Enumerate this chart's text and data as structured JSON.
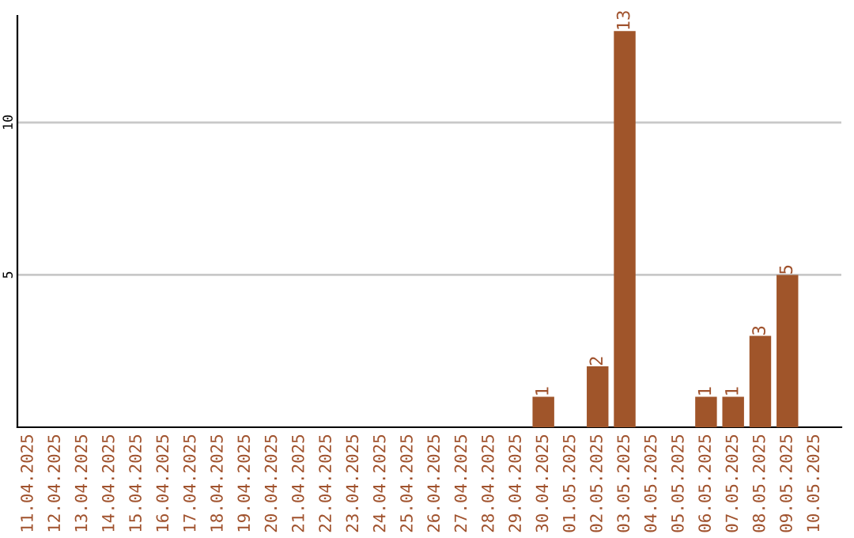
{
  "chart_data": {
    "type": "bar",
    "categories": [
      "11.04.2025",
      "12.04.2025",
      "13.04.2025",
      "14.04.2025",
      "15.04.2025",
      "16.04.2025",
      "17.04.2025",
      "18.04.2025",
      "19.04.2025",
      "20.04.2025",
      "21.04.2025",
      "22.04.2025",
      "23.04.2025",
      "24.04.2025",
      "25.04.2025",
      "26.04.2025",
      "27.04.2025",
      "28.04.2025",
      "29.04.2025",
      "30.04.2025",
      "01.05.2025",
      "02.05.2025",
      "03.05.2025",
      "04.05.2025",
      "05.05.2025",
      "06.05.2025",
      "07.05.2025",
      "08.05.2025",
      "09.05.2025",
      "10.05.2025"
    ],
    "values": [
      0,
      0,
      0,
      0,
      0,
      0,
      0,
      0,
      0,
      0,
      0,
      0,
      0,
      0,
      0,
      0,
      0,
      0,
      0,
      1,
      0,
      2,
      13,
      0,
      0,
      1,
      1,
      3,
      5,
      0
    ],
    "value_labels": [
      null,
      null,
      null,
      null,
      null,
      null,
      null,
      null,
      null,
      null,
      null,
      null,
      null,
      null,
      null,
      null,
      null,
      null,
      null,
      "1",
      null,
      "2",
      "13",
      null,
      null,
      "1",
      "1",
      "3",
      "5",
      null
    ],
    "color": "#a0552a",
    "ylim": [
      0,
      13.5
    ],
    "yticks": [
      5,
      10
    ],
    "grid": "y",
    "legend": false
  }
}
